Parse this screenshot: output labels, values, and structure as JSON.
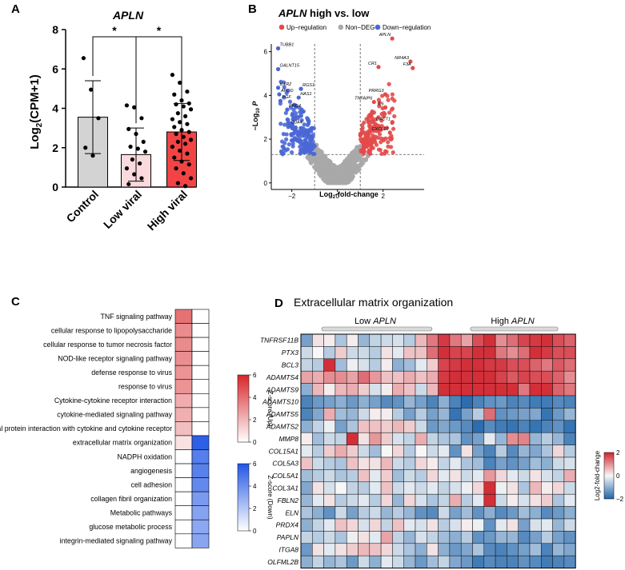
{
  "panel_letters": [
    "A",
    "B",
    "C",
    "D"
  ],
  "chart_data": [
    {
      "panel": "A",
      "type": "bar",
      "title": "APLN",
      "ylabel": "Log2(CPM+1)",
      "ylim": [
        0,
        8
      ],
      "yticks": [
        "0",
        "2",
        "4",
        "6",
        "8"
      ],
      "categories": [
        "Control",
        "Low viral",
        "High viral"
      ],
      "values": [
        3.55,
        1.65,
        2.8
      ],
      "errors": [
        1.85,
        1.35,
        1.45
      ],
      "colors": [
        "#d3d3d3",
        "#fadadd",
        "#f24444"
      ],
      "significance": [
        {
          "between": [
            0,
            1
          ],
          "label": "*"
        },
        {
          "between": [
            1,
            2
          ],
          "label": "*"
        }
      ],
      "points": [
        [
          6.55,
          4.95,
          3.5,
          2.0,
          1.6
        ],
        [
          4.15,
          4.05,
          3.5,
          2.95,
          2.7,
          2.3,
          2.05,
          1.95,
          1.8,
          1.4,
          1.2,
          0.95,
          0.65,
          0.45,
          0.15
        ],
        [
          5.7,
          5.3,
          4.85,
          4.7,
          4.4,
          4.25,
          4.2,
          4.1,
          3.95,
          3.75,
          3.6,
          3.45,
          3.3,
          3.2,
          3.05,
          2.9,
          2.8,
          2.7,
          2.55,
          2.4,
          2.3,
          2.2,
          2.05,
          1.85,
          1.7,
          1.5,
          1.3,
          1.15,
          0.95,
          0.7,
          0.45,
          0.2,
          0.05
        ]
      ]
    },
    {
      "panel": "B",
      "type": "scatter",
      "title": "APLN high vs. low",
      "xlabel": "Log2-fold-change",
      "ylabel": "−Log10 P",
      "xlim": [
        -2.9,
        3.8
      ],
      "ylim": [
        -0.3,
        6.9
      ],
      "xticks": [
        "−2",
        "0",
        "2"
      ],
      "yticks": [
        "0",
        "2",
        "4",
        "6"
      ],
      "fc_thresholds": [
        -1,
        1
      ],
      "p_threshold": 1.3,
      "legend": [
        {
          "label": "Up−regulation",
          "color": "#e34a4a"
        },
        {
          "label": "Non−DEG",
          "color": "#a9a9a9"
        },
        {
          "label": "Down−regulation",
          "color": "#4a67d6"
        }
      ],
      "labeled_genes": [
        {
          "gene": "TUBB1",
          "x": -2.6,
          "y": 6.15
        },
        {
          "gene": "GALNT15",
          "x": -2.6,
          "y": 5.2
        },
        {
          "gene": "IL1R2",
          "x": -2.6,
          "y": 4.35
        },
        {
          "gene": "APOD",
          "x": -2.55,
          "y": 4.05
        },
        {
          "gene": "PGF",
          "x": -2.5,
          "y": 3.75
        },
        {
          "gene": "PRG4",
          "x": -2.2,
          "y": 3.35
        },
        {
          "gene": "GJA4",
          "x": -2.1,
          "y": 2.6
        },
        {
          "gene": "RGS1",
          "x": -1.6,
          "y": 4.3
        },
        {
          "gene": "HAS1",
          "x": -1.7,
          "y": 3.9
        },
        {
          "gene": "APLN",
          "x": 2.4,
          "y": 6.6
        },
        {
          "gene": "CR1",
          "x": 1.8,
          "y": 5.3
        },
        {
          "gene": "NR4A3",
          "x": 3.2,
          "y": 5.55
        },
        {
          "gene": "F3A",
          "x": 3.3,
          "y": 5.25
        },
        {
          "gene": "PRRG3",
          "x": 2.1,
          "y": 4.05
        },
        {
          "gene": "IL6",
          "x": 2.1,
          "y": 3.45
        },
        {
          "gene": "TNFAIP6",
          "x": 1.6,
          "y": 3.7
        },
        {
          "gene": "DACT1",
          "x": 2.4,
          "y": 2.75
        },
        {
          "gene": "CXCL10",
          "x": 2.3,
          "y": 2.3
        }
      ]
    },
    {
      "panel": "C",
      "type": "heatmap",
      "pathways": [
        "TNF signaling pathway",
        "cellular response to lipopolysaccharide",
        "cellular response to tumor necrosis factor",
        "NOD-like receptor signaling pathway",
        "defense response to virus",
        "response to virus",
        "Cytokine-cytokine receptor interaction",
        "cytokine-mediated signaling pathway",
        "Viral protein interaction with cytokine and cytokine receptor",
        "extracellular matrix organization",
        "NADPH oxidation",
        "angiogenesis",
        "cell adhesion",
        "collagen fibril organization",
        "Metabolic pathways",
        "glucose metabolic process",
        "integrin-mediated signaling pathway"
      ],
      "up": [
        3.9,
        3.2,
        3.2,
        3.1,
        3.0,
        3.0,
        2.3,
        2.2,
        1.8,
        0.8,
        0,
        0,
        0,
        0,
        0,
        0,
        0
      ],
      "down": [
        0,
        0,
        0,
        0,
        0,
        0,
        0,
        0,
        0,
        5.7,
        4.6,
        4.5,
        4.2,
        3.6,
        3.3,
        3.1,
        3.2
      ],
      "up_scale": {
        "label": "Z-score (Up)",
        "ticks": [
          "0",
          "2",
          "4",
          "6"
        ],
        "max": 6,
        "color": "#d7262b"
      },
      "down_scale": {
        "label": "Z-score (Down)",
        "ticks": [
          "0",
          "2",
          "4",
          "6"
        ],
        "max": 6,
        "color": "#2257e6"
      }
    },
    {
      "panel": "D",
      "type": "heatmap",
      "title": "Extracellular matrix organization",
      "groups": [
        {
          "label": "Low APLN",
          "start": 0,
          "end": 13
        },
        {
          "label": "High APLN",
          "start": 13,
          "end": 24
        }
      ],
      "genes": [
        "TNFRSF11B",
        "PTX3",
        "BCL3",
        "ADAMTS4",
        "ADAMTS9",
        "ADAMTS10",
        "ADAMTS5",
        "ADAMTS2",
        "MMP8",
        "COL15A1",
        "COL5A3",
        "COL5A1",
        "COL3A1",
        "FBLN2",
        "ELN",
        "PRDX4",
        "PAPLN",
        "ITGA8",
        "OLFML2B"
      ],
      "values": [
        [
          -1.2,
          0.2,
          0.1,
          -0.7,
          0.1,
          -0.9,
          -0.5,
          -0.4,
          -0.3,
          -0.6,
          0.6,
          1.2,
          1.8,
          1.2,
          0.8,
          1.6,
          1.9,
          1.0,
          1.3,
          1.7,
          1.8,
          1.9,
          1.6,
          1.4
        ],
        [
          -0.4,
          0,
          -0.6,
          0.4,
          -0.4,
          -0.4,
          -0.6,
          0.2,
          -0.2,
          0.5,
          0.5,
          1.3,
          1.9,
          1.7,
          1.7,
          1.9,
          1.9,
          1.2,
          1.0,
          1.3,
          1.9,
          1.8,
          1.6,
          1.6
        ],
        [
          -0.5,
          -0.6,
          1.9,
          -0.8,
          -0.1,
          -0.3,
          -0.6,
          0.1,
          -1.0,
          -0.8,
          -0.2,
          0.4,
          1.7,
          1.8,
          1.9,
          1.9,
          1.8,
          1.8,
          1.6,
          1.6,
          1.4,
          1.2,
          1.5,
          1.3
        ],
        [
          0.8,
          0.7,
          1.0,
          1.0,
          0.8,
          1.3,
          0.9,
          0.5,
          0.5,
          0.7,
          0.5,
          0.7,
          1.8,
          1.9,
          1.9,
          1.9,
          1.9,
          1.7,
          1.5,
          1.7,
          1.6,
          1.6,
          1.4,
          1.0
        ],
        [
          -1.0,
          0.6,
          0.1,
          0.6,
          0.7,
          0.4,
          -0.3,
          0.1,
          0.7,
          0.5,
          -0.4,
          0.6,
          1.9,
          1.9,
          1.9,
          1.9,
          1.9,
          1.9,
          1.9,
          1.2,
          1.9,
          1.9,
          1.4,
          1.2
        ],
        [
          -1.6,
          -1.3,
          -1.2,
          -1.0,
          -1.3,
          -1.0,
          -1.2,
          -1.5,
          -1.4,
          -0.9,
          -1.2,
          -1.6,
          -1.0,
          -1.6,
          -1.9,
          -1.6,
          -1.4,
          -1.3,
          -1.6,
          -1.5,
          -1.7,
          -1.7,
          -1.5,
          -1.6
        ],
        [
          -1.6,
          -1.1,
          0.7,
          -0.8,
          -0.9,
          -0.4,
          0.1,
          0.1,
          -0.6,
          -1.2,
          -0.6,
          -1.2,
          -0.9,
          -1.8,
          -1.2,
          -0.6,
          1.3,
          -1.4,
          -1.3,
          -1.2,
          -1.1,
          -1.8,
          -1.3,
          -0.9
        ],
        [
          -1.0,
          -0.5,
          -0.1,
          -1.2,
          -0.7,
          0.5,
          0.5,
          0.4,
          0.6,
          0.4,
          -0.4,
          -1.3,
          -1.1,
          -1.3,
          -1.5,
          -1.9,
          -1.5,
          -1.7,
          -1.8,
          -1.6,
          -1.8,
          -1.6,
          -1.4,
          -1.8
        ],
        [
          0.1,
          -0.8,
          -0.4,
          -0.5,
          1.9,
          0.2,
          0.9,
          0.4,
          -0.3,
          -0.5,
          0.7,
          -0.5,
          -0.7,
          -0.7,
          -1.4,
          -1.2,
          -0.2,
          -0.9,
          1.0,
          1.1,
          -0.9,
          -0.6,
          -0.9,
          -1.6
        ],
        [
          -0.2,
          -0.6,
          0.4,
          0.7,
          0.4,
          -0.4,
          -0.8,
          0,
          0.3,
          -0.6,
          0,
          -0.4,
          -0.2,
          -1.4,
          0.2,
          -1.2,
          -1.6,
          -0.6,
          -1.5,
          -0.9,
          -1.1,
          -0.7,
          0.3,
          -0.6
        ],
        [
          0.5,
          -0.4,
          -0.6,
          -0.7,
          0.5,
          0.2,
          0.2,
          0.6,
          -0.4,
          -0.6,
          0.3,
          0.1,
          -0.5,
          -0.2,
          -0.7,
          -0.8,
          -1.6,
          -1.2,
          -1.4,
          -1.2,
          -0.8,
          -1.0,
          -0.4,
          -0.3
        ],
        [
          -0.8,
          -0.6,
          -0.4,
          -0.7,
          -0.6,
          0.5,
          -0.2,
          0.4,
          -0.8,
          -0.4,
          -0.6,
          0.3,
          -0.2,
          0.2,
          -0.4,
          -0.2,
          0.9,
          0.3,
          -0.2,
          -0.4,
          0.2,
          -0.3,
          -0.5,
          0.7
        ],
        [
          -1.1,
          0.2,
          -0.3,
          0,
          -0.5,
          -0.6,
          -0.2,
          0.5,
          -0.4,
          -0.2,
          -0.4,
          -0.2,
          -0.5,
          -0.3,
          -0.1,
          0.3,
          1.9,
          -0.1,
          0.2,
          -0.7,
          0.6,
          0.1,
          0.3,
          -0.4
        ],
        [
          -0.9,
          -0.2,
          0.2,
          -0.6,
          -0.4,
          -0.2,
          -0.6,
          0.3,
          -0.9,
          0.3,
          -0.3,
          -0.7,
          -0.5,
          0.7,
          -0.6,
          -0.2,
          1.9,
          -0.4,
          0.1,
          -0.3,
          0.2,
          0.4,
          -0.7,
          -0.2
        ],
        [
          -0.7,
          -1.0,
          -1.4,
          -0.4,
          -1.2,
          -0.6,
          -0.4,
          -0.9,
          -0.6,
          -0.9,
          -1.4,
          -1.5,
          -0.4,
          -1.2,
          -0.8,
          -1.4,
          -1.0,
          -1.5,
          -1.3,
          -0.8,
          -1.0,
          -1.5,
          -1.3,
          -1.0
        ],
        [
          -1.0,
          -0.5,
          -0.2,
          0.5,
          0.3,
          -0.3,
          0.3,
          -0.5,
          0.5,
          -0.2,
          -0.3,
          0.2,
          -0.6,
          -0.3,
          0.1,
          -0.1,
          -1.4,
          -0.2,
          0.2,
          -1.2,
          -0.3,
          -0.2,
          -0.9,
          -0.4
        ],
        [
          -0.5,
          -0.6,
          -0.4,
          -0.7,
          -0.1,
          0.2,
          -0.2,
          0.8,
          -0.5,
          -0.9,
          -0.3,
          -0.5,
          -0.8,
          -1.0,
          -0.6,
          -1.4,
          -1.3,
          -0.9,
          -0.9,
          -1.5,
          -1.2,
          -0.6,
          -1.2,
          -1.4
        ],
        [
          -1.3,
          0.2,
          -0.2,
          0.2,
          0.4,
          0.6,
          0.5,
          0.3,
          -0.4,
          -0.7,
          -1.0,
          0.2,
          -1.0,
          -1.3,
          -1.1,
          -0.7,
          -1.5,
          -1.6,
          -1.4,
          -1.2,
          -0.8,
          -1.6,
          -0.9,
          -1.1
        ],
        [
          -1.0,
          -0.5,
          -0.9,
          -0.7,
          -1.3,
          -0.4,
          -1.0,
          -0.2,
          -0.4,
          -0.9,
          -1.3,
          -0.8,
          -0.5,
          -1.1,
          -1.3,
          -1.7,
          -1.5,
          -1.6,
          -1.6,
          -1.4,
          -1.5,
          -1.7,
          -1.6,
          -1.5
        ]
      ],
      "scale": {
        "label": "Log2-fold-change",
        "ticks": [
          "2",
          "0",
          "−2"
        ],
        "min": -2,
        "max": 2,
        "low_color": "#2166ac",
        "mid_color": "#f7f7f7",
        "high_color": "#d1242f"
      }
    }
  ]
}
